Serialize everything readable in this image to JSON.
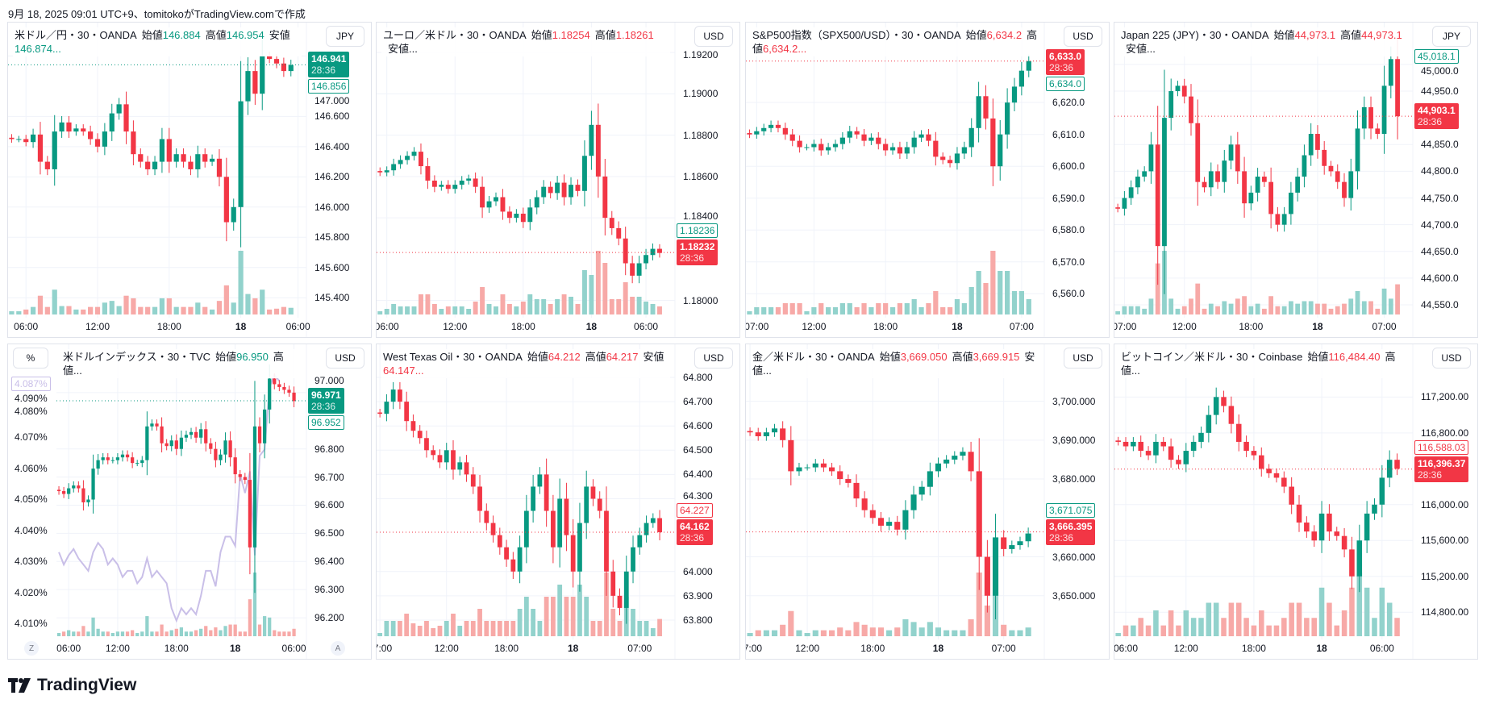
{
  "caption": "9月 18, 2025 09:01 UTC+9、tomitokoがTradingView.comで作成",
  "brand": "TradingView",
  "colors": {
    "up": "#089981",
    "down": "#f23645",
    "vol_up": "#92d2cc",
    "vol_down": "#f7a9a7",
    "secondary": "#c9bfe8"
  },
  "panels": [
    {
      "id": "usdjpy",
      "title": "米ドル／円・30・OANDA",
      "value_color": "up",
      "legend": [
        {
          "label": "始値",
          "value": "146.884"
        },
        {
          "label": "高値",
          "value": "146.954"
        },
        {
          "label": "安値",
          "value": "146.874..."
        }
      ],
      "currency": "JPY",
      "yrange": [
        145.3,
        147.05
      ],
      "yticks": [
        {
          "v": 147.0,
          "label": "147.000"
        },
        {
          "v": 146.6,
          "label": "146.600"
        },
        {
          "v": 146.4,
          "label": "146.400"
        },
        {
          "v": 146.2,
          "label": "146.200"
        },
        {
          "v": 146.0,
          "label": "146.000"
        },
        {
          "v": 145.8,
          "label": "145.800"
        },
        {
          "v": 145.6,
          "label": "145.600"
        },
        {
          "v": 145.4,
          "label": "145.400"
        }
      ],
      "xticks": [
        {
          "label": "06:00",
          "bar": 2
        },
        {
          "label": "12:00",
          "bar": 12
        },
        {
          "label": "18:00",
          "bar": 22
        },
        {
          "label": "18",
          "bar": 32,
          "bold": true
        },
        {
          "label": "06:00",
          "bar": 40
        }
      ],
      "closes": [
        146.45,
        146.45,
        146.43,
        146.48,
        146.3,
        146.25,
        146.5,
        146.56,
        146.5,
        146.52,
        146.5,
        146.45,
        146.4,
        146.5,
        146.62,
        146.68,
        146.5,
        146.35,
        146.3,
        146.25,
        146.3,
        146.45,
        146.3,
        146.35,
        146.3,
        146.25,
        146.35,
        146.3,
        146.32,
        146.2,
        145.9,
        146.0,
        146.7,
        146.9,
        146.75,
        147.0,
        146.98,
        146.95,
        146.9,
        146.94
      ],
      "last": {
        "value": 146.941,
        "label": "146.941",
        "timer": "28:36",
        "color": "up"
      },
      "second": {
        "value": 146.856,
        "label": "146.856",
        "color": "up"
      }
    },
    {
      "id": "eurusd",
      "title": "ユーロ／米ドル・30・OANDA",
      "value_color": "down",
      "legend": [
        {
          "label": "始値",
          "value": "1.18254"
        },
        {
          "label": "高値",
          "value": "1.18261"
        },
        {
          "label": "安値..."
        }
      ],
      "currency": "USD",
      "yrange": [
        1.1794,
        1.1922
      ],
      "yticks": [
        {
          "v": 1.192,
          "label": "1.19200"
        },
        {
          "v": 1.19,
          "label": "1.19000"
        },
        {
          "v": 1.188,
          "label": "1.18800"
        },
        {
          "v": 1.186,
          "label": "1.18600"
        },
        {
          "v": 1.184,
          "label": "1.18400"
        },
        {
          "v": 1.18,
          "label": "1.18000"
        }
      ],
      "xticks": [
        {
          "label": "06:00",
          "bar": 1
        },
        {
          "label": "12:00",
          "bar": 11
        },
        {
          "label": "18:00",
          "bar": 21
        },
        {
          "label": "18",
          "bar": 31,
          "bold": true
        },
        {
          "label": "06:00",
          "bar": 39
        }
      ],
      "closes": [
        1.1862,
        1.1863,
        1.1866,
        1.1868,
        1.187,
        1.1872,
        1.1865,
        1.1858,
        1.1855,
        1.1856,
        1.1854,
        1.1856,
        1.1858,
        1.1859,
        1.1855,
        1.1845,
        1.1848,
        1.185,
        1.1843,
        1.184,
        1.1842,
        1.1838,
        1.1845,
        1.185,
        1.1855,
        1.1852,
        1.1857,
        1.185,
        1.1856,
        1.1853,
        1.187,
        1.1885,
        1.186,
        1.184,
        1.1835,
        1.183,
        1.1818,
        1.1812,
        1.1818,
        1.1822,
        1.1825,
        1.1823
      ],
      "last": {
        "value": 1.18232,
        "label": "1.18232",
        "timer": "28:36",
        "color": "down"
      },
      "second": {
        "value": 1.18236,
        "label": "1.18236",
        "color": "up"
      }
    },
    {
      "id": "spx500",
      "title": "S&P500指数（SPX500/USD）・30・OANDA",
      "value_color": "down",
      "legend": [
        {
          "label": "始値",
          "value": "6,634.2"
        },
        {
          "label": "高値",
          "value": "6,634.2..."
        }
      ],
      "currency": "USD",
      "yrange": [
        6554,
        6637
      ],
      "yticks": [
        {
          "v": 6620,
          "label": "6,620.0"
        },
        {
          "v": 6610,
          "label": "6,610.0"
        },
        {
          "v": 6600,
          "label": "6,600.0"
        },
        {
          "v": 6590,
          "label": "6,590.0"
        },
        {
          "v": 6580,
          "label": "6,580.0"
        },
        {
          "v": 6570,
          "label": "6,570.0"
        },
        {
          "v": 6560,
          "label": "6,560.0"
        }
      ],
      "xticks": [
        {
          "label": "07:00",
          "bar": 1
        },
        {
          "label": "12:00",
          "bar": 9
        },
        {
          "label": "18:00",
          "bar": 19
        },
        {
          "label": "18",
          "bar": 29,
          "bold": true
        },
        {
          "label": "07:00",
          "bar": 38
        }
      ],
      "closes": [
        6610,
        6611,
        6612,
        6613,
        6612,
        6610,
        6608,
        6606,
        6606,
        6607,
        6605,
        6606,
        6607,
        6609,
        6611,
        6610,
        6608,
        6609,
        6607,
        6605,
        6606,
        6604,
        6606,
        6609,
        6610,
        6608,
        6603,
        6602,
        6601,
        6604,
        6606,
        6612,
        6622,
        6615,
        6600,
        6610,
        6620,
        6625,
        6630,
        6633
      ],
      "last": {
        "value": 6633.0,
        "label": "6,633.0",
        "timer": "28:36",
        "color": "down"
      },
      "second": {
        "value": 6634.0,
        "label": "6,634.0",
        "color": "up"
      }
    },
    {
      "id": "jp225",
      "title": "Japan 225 (JPY)・30・OANDA",
      "value_color": "down",
      "legend": [
        {
          "label": "始値",
          "value": "44,973.1"
        },
        {
          "label": "高値",
          "value": "44,973.1"
        },
        {
          "label": "安値..."
        }
      ],
      "currency": "JPY",
      "yrange": [
        44535,
        45030
      ],
      "yticks": [
        {
          "v": 45000,
          "label": "45,000.0"
        },
        {
          "v": 44950,
          "label": "44,950.0"
        },
        {
          "v": 44850,
          "label": "44,850.0"
        },
        {
          "v": 44800,
          "label": "44,800.0"
        },
        {
          "v": 44750,
          "label": "44,750.0"
        },
        {
          "v": 44700,
          "label": "44,700.0"
        },
        {
          "v": 44650,
          "label": "44,650.0"
        },
        {
          "v": 44600,
          "label": "44,600.0"
        },
        {
          "v": 44550,
          "label": "44,550.0"
        }
      ],
      "xticks": [
        {
          "label": "07:00",
          "bar": 1
        },
        {
          "label": "12:00",
          "bar": 10
        },
        {
          "label": "18:00",
          "bar": 20
        },
        {
          "label": "18",
          "bar": 30,
          "bold": true
        },
        {
          "label": "07:00",
          "bar": 40
        }
      ],
      "closes": [
        44730,
        44750,
        44770,
        44790,
        44800,
        44850,
        44660,
        44900,
        44950,
        44960,
        44940,
        44890,
        44780,
        44770,
        44800,
        44780,
        44820,
        44850,
        44800,
        44740,
        44760,
        44790,
        44780,
        44720,
        44700,
        44720,
        44760,
        44790,
        44830,
        44870,
        44840,
        44810,
        44800,
        44780,
        44750,
        44800,
        44880,
        44920,
        44880,
        44870,
        44960,
        45010,
        44903
      ],
      "last": {
        "value": 44903.1,
        "label": "44,903.1",
        "timer": "28:36",
        "color": "down"
      },
      "second": {
        "value": 45018.1,
        "label": "45,018.1",
        "color": "up"
      }
    },
    {
      "id": "dxy",
      "title": "米ドルインデックス・30・TVC",
      "value_color": "up",
      "legend": [
        {
          "label": "始値",
          "value": "96.950"
        },
        {
          "label": "高値..."
        }
      ],
      "currency": "USD",
      "pct_button": "%",
      "left_button": "Z",
      "right_button": "A",
      "yrange": [
        96.14,
        97.08
      ],
      "yticks": [
        {
          "v": 97.0,
          "label": "97.000"
        },
        {
          "v": 96.8,
          "label": "96.800"
        },
        {
          "v": 96.7,
          "label": "96.700"
        },
        {
          "v": 96.6,
          "label": "96.600"
        },
        {
          "v": 96.5,
          "label": "96.500"
        },
        {
          "v": 96.4,
          "label": "96.400"
        },
        {
          "v": 96.3,
          "label": "96.300"
        },
        {
          "v": 96.2,
          "label": "96.200"
        }
      ],
      "left_range": [
        4.0065,
        4.0915
      ],
      "left_ticks": [
        {
          "v": 4.09,
          "label": "4.090%"
        },
        {
          "v": 4.08,
          "label": "4.080%"
        },
        {
          "v": 4.07,
          "label": "4.070%"
        },
        {
          "v": 4.06,
          "label": "4.060%"
        },
        {
          "v": 4.05,
          "label": "4.050%"
        },
        {
          "v": 4.04,
          "label": "4.040%"
        },
        {
          "v": 4.03,
          "label": "4.030%"
        },
        {
          "v": 4.02,
          "label": "4.020%"
        },
        {
          "v": 4.01,
          "label": "4.010%"
        }
      ],
      "left_label": {
        "value": 4.087,
        "label": "4.087%"
      },
      "secondary": [
        4.033,
        4.029,
        4.032,
        4.034,
        4.031,
        4.029,
        4.027,
        4.033,
        4.036,
        4.034,
        4.029,
        4.031,
        4.029,
        4.025,
        4.027,
        4.027,
        4.023,
        4.025,
        4.031,
        4.025,
        4.027,
        4.025,
        4.023,
        4.015,
        4.011,
        4.015,
        4.013,
        4.015,
        4.013,
        4.019,
        4.027,
        4.027,
        4.022,
        4.033,
        4.038,
        4.038,
        4.035,
        4.058,
        4.052,
        4.059,
        4.032,
        4.064,
        4.066,
        4.086,
        4.09,
        4.088
      ],
      "xticks": [
        {
          "label": "06:00",
          "bar": 2
        },
        {
          "label": "12:00",
          "bar": 12
        },
        {
          "label": "18:00",
          "bar": 24
        },
        {
          "label": "18",
          "bar": 36,
          "bold": true
        },
        {
          "label": "06:00",
          "bar": 48
        }
      ],
      "closes": [
        96.65,
        96.64,
        96.66,
        96.67,
        96.66,
        96.61,
        96.62,
        96.73,
        96.76,
        96.77,
        96.76,
        96.76,
        96.77,
        96.78,
        96.77,
        96.75,
        96.75,
        96.76,
        96.88,
        96.89,
        96.88,
        96.82,
        96.81,
        96.83,
        96.8,
        96.84,
        96.85,
        96.86,
        96.84,
        96.87,
        96.82,
        96.8,
        96.76,
        96.78,
        96.83,
        96.77,
        96.71,
        96.7,
        96.69,
        96.45,
        96.88,
        96.82,
        96.94,
        97.05,
        97.03,
        97.02,
        97.01,
        97.0,
        96.97
      ],
      "last": {
        "value": 96.971,
        "label": "96.971",
        "timer": "28:36",
        "color": "up"
      },
      "second": {
        "value": 96.952,
        "label": "96.952",
        "color": "up"
      }
    },
    {
      "id": "wti",
      "title": "West Texas Oil・30・OANDA",
      "value_color": "down",
      "legend": [
        {
          "label": "始値",
          "value": "64.212"
        },
        {
          "label": "高値",
          "value": "64.217"
        },
        {
          "label": "安値",
          "value": "64.147..."
        }
      ],
      "currency": "USD",
      "yrange": [
        63.74,
        64.83
      ],
      "yticks": [
        {
          "v": 64.8,
          "label": "64.800"
        },
        {
          "v": 64.7,
          "label": "64.700"
        },
        {
          "v": 64.6,
          "label": "64.600"
        },
        {
          "v": 64.5,
          "label": "64.500"
        },
        {
          "v": 64.4,
          "label": "64.400"
        },
        {
          "v": 64.3,
          "label": "64.300"
        },
        {
          "v": 64.0,
          "label": "64.000"
        },
        {
          "v": 63.9,
          "label": "63.900"
        },
        {
          "v": 63.8,
          "label": "63.800"
        }
      ],
      "xticks": [
        {
          "label": "07:00",
          "bar": 0
        },
        {
          "label": "12:00",
          "bar": 10
        },
        {
          "label": "18:00",
          "bar": 19
        },
        {
          "label": "18",
          "bar": 29,
          "bold": true
        },
        {
          "label": "07:00",
          "bar": 39
        }
      ],
      "closes": [
        64.65,
        64.7,
        64.75,
        64.7,
        64.62,
        64.58,
        64.55,
        64.5,
        64.48,
        64.45,
        64.5,
        64.42,
        64.45,
        64.4,
        64.35,
        64.25,
        64.2,
        64.15,
        64.1,
        64.05,
        64.0,
        64.1,
        64.25,
        64.35,
        64.4,
        64.25,
        64.1,
        64.3,
        64.15,
        64.0,
        64.2,
        64.35,
        64.3,
        64.25,
        64.0,
        63.9,
        63.85,
        64.0,
        64.1,
        64.15,
        64.2,
        64.22,
        64.162
      ],
      "last": {
        "value": 64.162,
        "label": "64.162",
        "timer": "28:36",
        "color": "down"
      },
      "second": {
        "value": 64.227,
        "label": "64.227",
        "color": "down"
      }
    },
    {
      "id": "xauusd",
      "title": "金／米ドル・30・OANDA",
      "value_color": "down",
      "legend": [
        {
          "label": "始値",
          "value": "3,669.050"
        },
        {
          "label": "高値",
          "value": "3,669.915"
        },
        {
          "label": "安値..."
        }
      ],
      "currency": "USD",
      "yrange": [
        3640,
        3708
      ],
      "yticks": [
        {
          "v": 3700,
          "label": "3,700.000"
        },
        {
          "v": 3690,
          "label": "3,690.000"
        },
        {
          "v": 3680,
          "label": "3,680.000"
        },
        {
          "v": 3660,
          "label": "3,660.000"
        },
        {
          "v": 3650,
          "label": "3,650.000"
        }
      ],
      "xticks": [
        {
          "label": "07:00",
          "bar": 0
        },
        {
          "label": "12:00",
          "bar": 7
        },
        {
          "label": "18:00",
          "bar": 15
        },
        {
          "label": "18",
          "bar": 23,
          "bold": true
        },
        {
          "label": "07:00",
          "bar": 31
        }
      ],
      "closes": [
        3692,
        3691,
        3692,
        3693,
        3690,
        3682,
        3683,
        3683,
        3684,
        3683,
        3682,
        3680,
        3679,
        3675,
        3672,
        3670,
        3668,
        3669,
        3667,
        3672,
        3676,
        3678,
        3682,
        3684,
        3685,
        3686,
        3687,
        3682,
        3660,
        3650,
        3665,
        3662,
        3663,
        3664,
        3666
      ],
      "last": {
        "value": 3666.395,
        "label": "3,666.395",
        "timer": "28:36",
        "color": "down"
      },
      "second": {
        "value": 3671.075,
        "label": "3,671.075",
        "color": "up"
      }
    },
    {
      "id": "btcusd",
      "title": "ビットコイン／米ドル・30・Coinbase",
      "value_color": "down",
      "legend": [
        {
          "label": "始値",
          "value": "116,484.40"
        },
        {
          "label": "高値..."
        }
      ],
      "currency": "USD",
      "yrange": [
        114550,
        117500
      ],
      "yticks": [
        {
          "v": 117200,
          "label": "117,200.00"
        },
        {
          "v": 116800,
          "label": "116,800.00"
        },
        {
          "v": 116000,
          "label": "116,000.00"
        },
        {
          "v": 115600,
          "label": "115,600.00"
        },
        {
          "v": 115200,
          "label": "115,200.00"
        },
        {
          "v": 114800,
          "label": "114,800.00"
        }
      ],
      "xticks": [
        {
          "label": "06:00",
          "bar": 1
        },
        {
          "label": "12:00",
          "bar": 9
        },
        {
          "label": "18:00",
          "bar": 18
        },
        {
          "label": "18",
          "bar": 27,
          "bold": true
        },
        {
          "label": "06:00",
          "bar": 35
        }
      ],
      "closes": [
        116700,
        116650,
        116700,
        116600,
        116550,
        116700,
        116650,
        116500,
        116450,
        116600,
        116700,
        116800,
        117000,
        117200,
        117100,
        116900,
        116700,
        116600,
        116550,
        116400,
        116350,
        116300,
        116200,
        116000,
        115800,
        115700,
        115600,
        115900,
        115700,
        115650,
        115500,
        115200,
        115600,
        115900,
        116000,
        116300,
        116500,
        116400
      ],
      "last": {
        "value": 116396.37,
        "label": "116,396.37",
        "timer": "28:36",
        "color": "down"
      },
      "second": {
        "value": 116588.03,
        "label": "116,588.03",
        "color": "down"
      }
    }
  ]
}
